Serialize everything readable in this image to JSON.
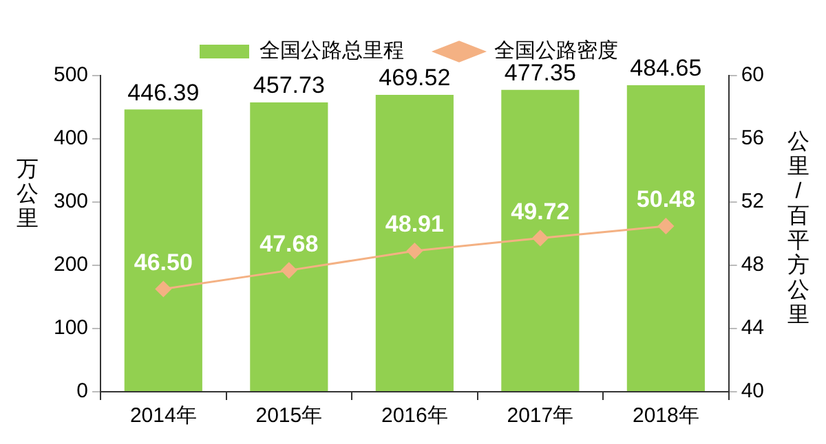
{
  "chart_data": {
    "type": "bar",
    "categories": [
      "2014年",
      "2015年",
      "2016年",
      "2017年",
      "2018年"
    ],
    "ylabel": "万公里",
    "y2label": "公里/百平方公里",
    "ylim": [
      0,
      500
    ],
    "yticks": [
      0,
      100,
      200,
      300,
      400,
      500
    ],
    "y2lim": [
      40,
      60
    ],
    "y2ticks": [
      40,
      44,
      48,
      52,
      56,
      60
    ],
    "grid": false,
    "legend": "top",
    "series": [
      {
        "name": "全国公路总里程",
        "color": "#92d050",
        "values": [
          446.39,
          457.73,
          469.52,
          477.35,
          484.65
        ],
        "value_labels": [
          "446.39",
          "457.73",
          "469.52",
          "477.35",
          "484.65"
        ]
      },
      {
        "name": "全国公路密度",
        "type": "line",
        "axis": "y2",
        "color": "#f4b183",
        "marker": "diamond",
        "values": [
          46.5,
          47.68,
          48.91,
          49.72,
          50.48
        ],
        "value_labels": [
          "46.50",
          "47.68",
          "48.91",
          "49.72",
          "50.48"
        ]
      }
    ]
  }
}
